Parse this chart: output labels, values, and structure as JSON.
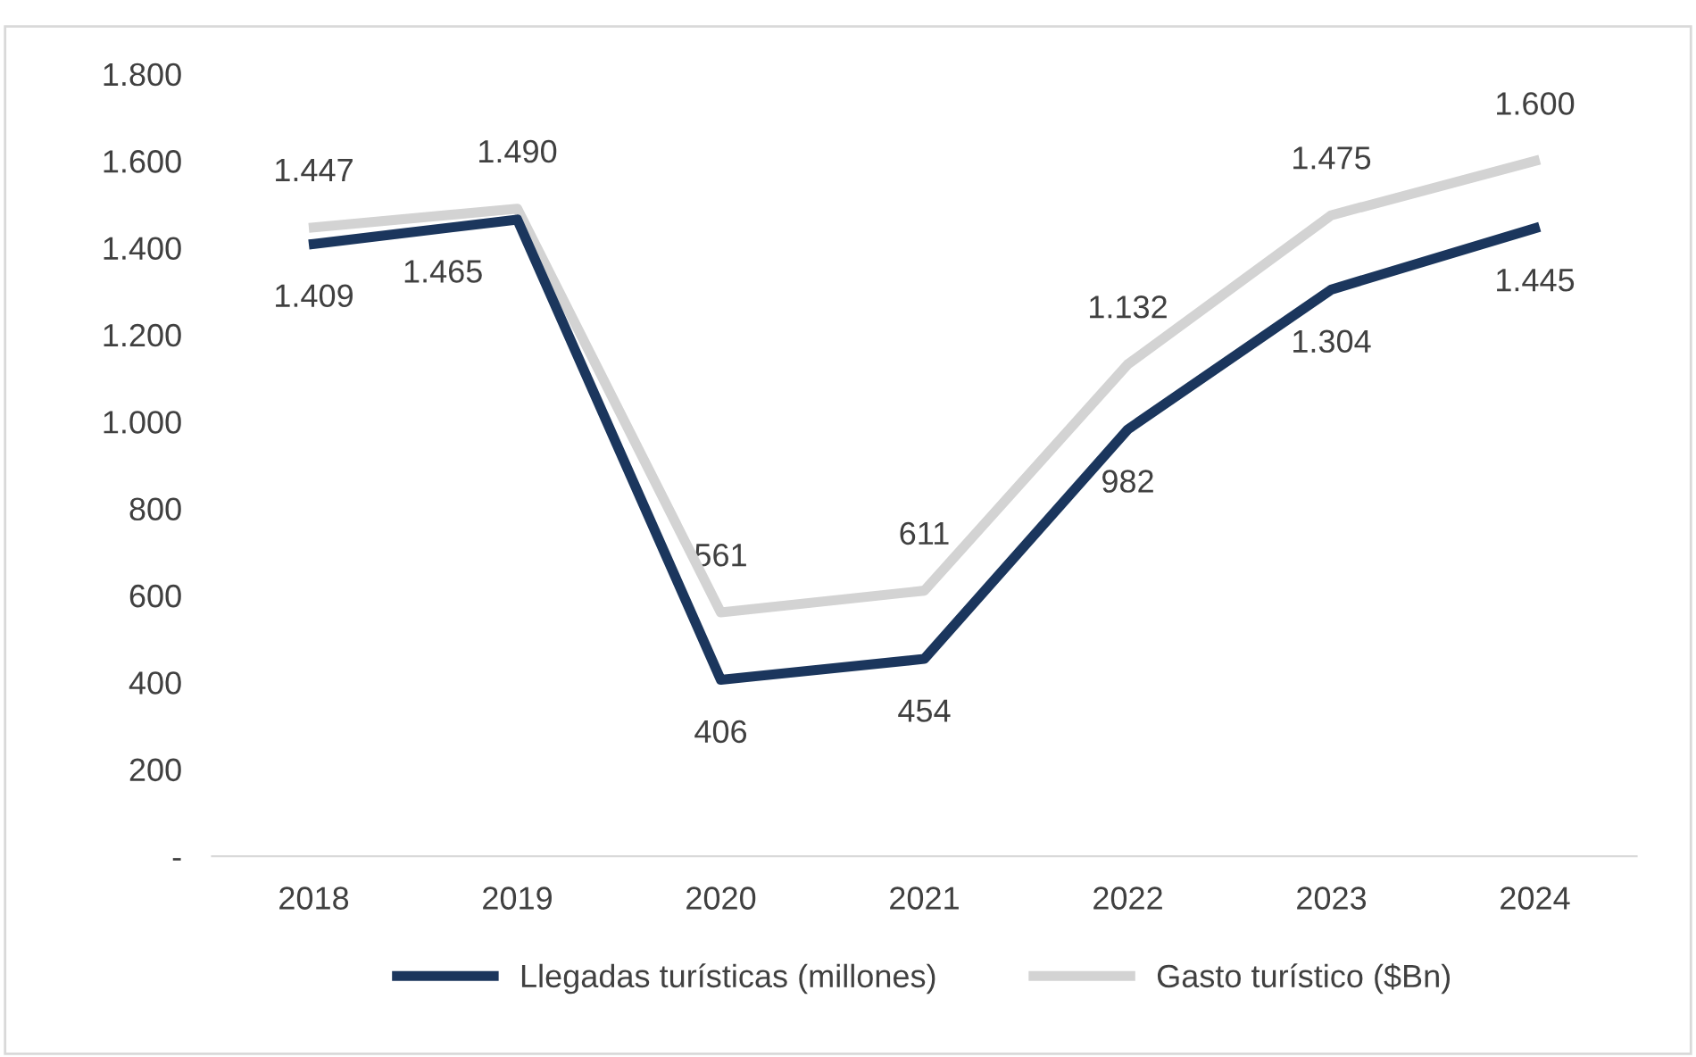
{
  "chart_data": {
    "type": "line",
    "categories": [
      "2018",
      "2019",
      "2020",
      "2021",
      "2022",
      "2023",
      "2024"
    ],
    "series": [
      {
        "name": "Llegadas turísticas (millones)",
        "color": "#1b365d",
        "values": [
          1409,
          1465,
          406,
          454,
          982,
          1304,
          1445
        ],
        "value_labels": [
          "1.409",
          "1.465",
          "406",
          "454",
          "982",
          "1.304",
          "1.445"
        ]
      },
      {
        "name": "Gasto turístico ($Bn)",
        "color": "#d3d3d3",
        "values": [
          1447,
          1490,
          561,
          611,
          1132,
          1475,
          1600
        ],
        "value_labels": [
          "1.447",
          "1.490",
          "561",
          "611",
          "1.132",
          "1.475",
          "1.600"
        ]
      }
    ],
    "ylim": [
      0,
      1800
    ],
    "yticks": [
      {
        "value": 0,
        "label": "-"
      },
      200,
      400,
      600,
      800,
      {
        "value": 1000,
        "label": "1.000"
      },
      {
        "value": 1200,
        "label": "1.200"
      },
      {
        "value": 1400,
        "label": "1.400"
      },
      {
        "value": 1600,
        "label": "1.600"
      },
      {
        "value": 1800,
        "label": "1.800"
      }
    ],
    "grid": false,
    "legend": "bottom",
    "marker": "none",
    "line_style": "solid"
  }
}
